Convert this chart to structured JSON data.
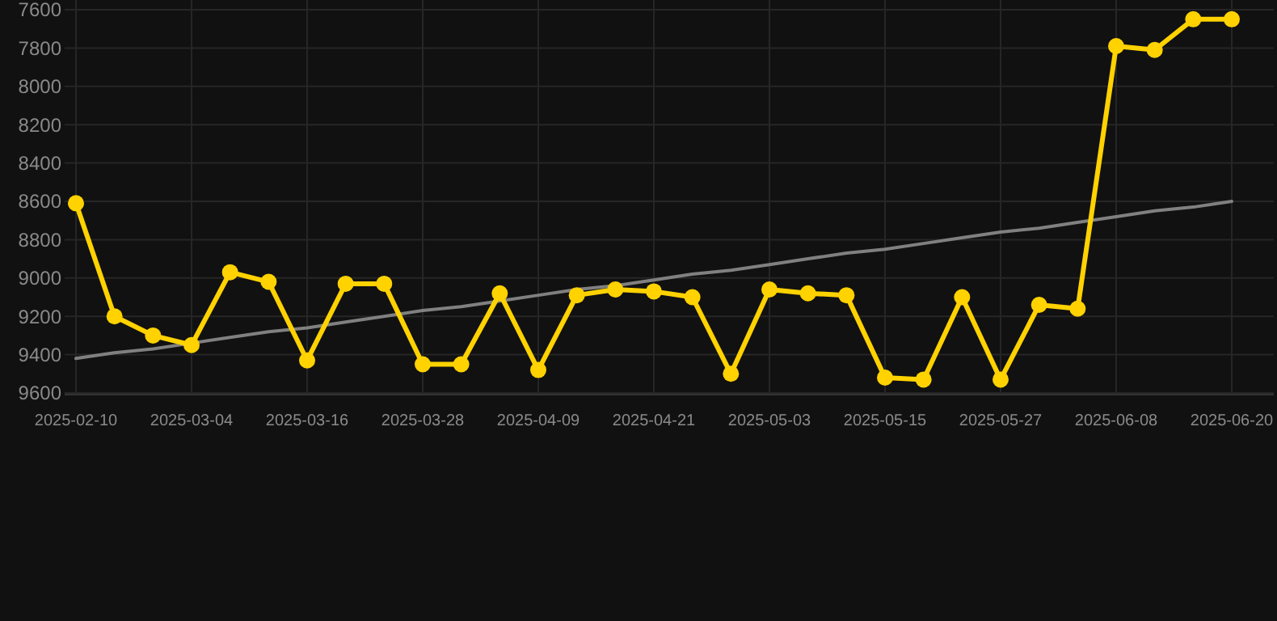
{
  "chart_data": {
    "type": "line",
    "categories": [
      "2025-02-10",
      null,
      null,
      "2025-03-04",
      null,
      null,
      "2025-03-16",
      null,
      null,
      "2025-03-28",
      null,
      null,
      "2025-04-09",
      null,
      null,
      "2025-04-21",
      null,
      null,
      "2025-05-03",
      null,
      null,
      "2025-05-15",
      null,
      null,
      "2025-05-27",
      null,
      null,
      "2025-06-08",
      null,
      null,
      "2025-06-20"
    ],
    "series": [
      {
        "color": "#ffd200",
        "marker": "circle",
        "values": [
          8610,
          9200,
          9300,
          9350,
          8970,
          9020,
          9430,
          9030,
          9030,
          9450,
          9450,
          9080,
          9480,
          9090,
          9060,
          9070,
          9100,
          9500,
          9060,
          9080,
          9090,
          9520,
          9530,
          9100,
          9530,
          9140,
          9160,
          7790,
          7810,
          7650,
          7650
        ]
      },
      {
        "color": "#808080",
        "marker": "none",
        "values": [
          9420,
          9390,
          9370,
          9340,
          9310,
          9280,
          9260,
          9230,
          9200,
          9170,
          9150,
          9120,
          9090,
          9060,
          9040,
          9010,
          8980,
          8960,
          8930,
          8900,
          8870,
          8850,
          8820,
          8790,
          8760,
          8740,
          8710,
          8680,
          8650,
          8630,
          8600
        ]
      }
    ],
    "ylim": [
      9600,
      7600
    ],
    "yticks": [
      7600,
      7800,
      8000,
      8200,
      8400,
      8600,
      8800,
      9000,
      9200,
      9400,
      9600
    ],
    "grid": true
  }
}
